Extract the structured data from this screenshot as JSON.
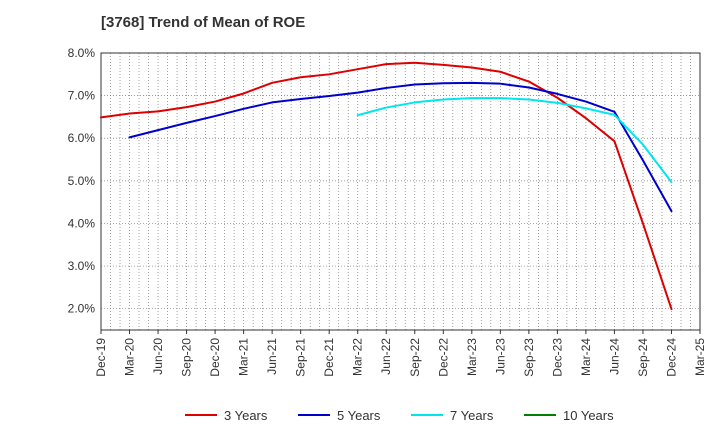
{
  "chart_data": {
    "type": "line",
    "title": "[3768]  Trend of Mean of ROE",
    "xlabel": "",
    "ylabel": "",
    "ylim": [
      1.5,
      8.0
    ],
    "y_ticks": [
      2.0,
      3.0,
      4.0,
      5.0,
      6.0,
      7.0,
      8.0
    ],
    "y_tick_labels": [
      "2.0%",
      "3.0%",
      "4.0%",
      "5.0%",
      "6.0%",
      "7.0%",
      "8.0%"
    ],
    "categories": [
      "Dec-19",
      "Mar-20",
      "Jun-20",
      "Sep-20",
      "Dec-20",
      "Mar-21",
      "Jun-21",
      "Sep-21",
      "Dec-21",
      "Mar-22",
      "Jun-22",
      "Sep-22",
      "Dec-22",
      "Mar-23",
      "Jun-23",
      "Sep-23",
      "Dec-23",
      "Mar-24",
      "Jun-24",
      "Sep-24",
      "Dec-24",
      "Mar-25"
    ],
    "grid": true,
    "legend_position": "bottom",
    "series": [
      {
        "name": "3 Years",
        "color": "#dd0000",
        "values": [
          6.49,
          6.58,
          6.63,
          6.73,
          6.86,
          7.05,
          7.3,
          7.43,
          7.5,
          7.62,
          7.74,
          7.77,
          7.72,
          7.66,
          7.56,
          7.33,
          6.95,
          6.47,
          5.93,
          4.0,
          1.99,
          null
        ]
      },
      {
        "name": "5 Years",
        "color": "#0000cc",
        "values": [
          null,
          6.02,
          6.19,
          6.36,
          6.52,
          6.69,
          6.84,
          6.92,
          6.99,
          7.07,
          7.18,
          7.26,
          7.29,
          7.3,
          7.28,
          7.19,
          7.04,
          6.86,
          6.62,
          5.48,
          4.29,
          null
        ]
      },
      {
        "name": "7 Years",
        "color": "#00e5ee",
        "values": [
          null,
          null,
          null,
          null,
          null,
          null,
          null,
          null,
          null,
          6.54,
          6.72,
          6.84,
          6.91,
          6.94,
          6.94,
          6.91,
          6.83,
          6.7,
          6.55,
          5.85,
          4.97,
          null
        ]
      },
      {
        "name": "10 Years",
        "color": "#008000",
        "values": [
          null,
          null,
          null,
          null,
          null,
          null,
          null,
          null,
          null,
          null,
          null,
          null,
          null,
          null,
          null,
          null,
          null,
          null,
          null,
          null,
          null,
          null
        ]
      }
    ]
  }
}
